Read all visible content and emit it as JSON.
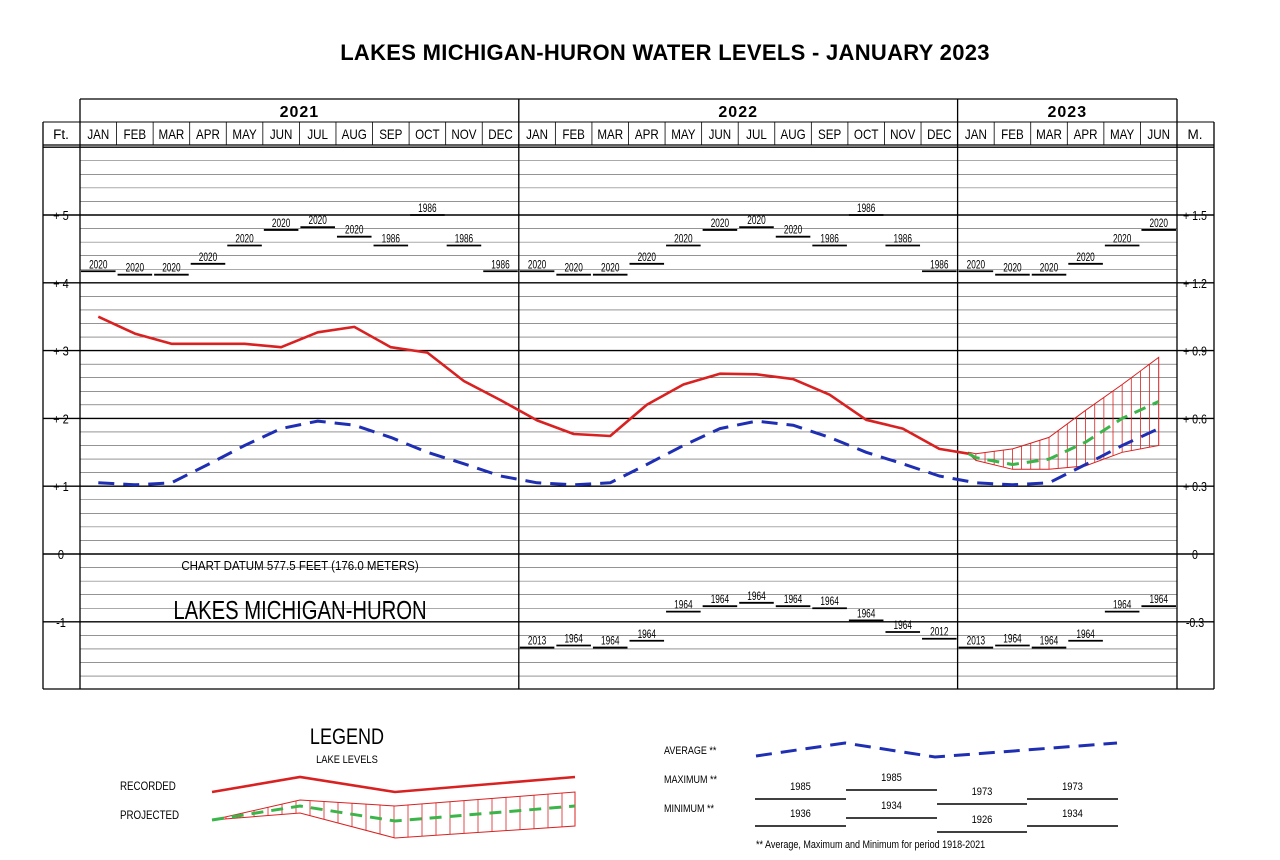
{
  "page": {
    "title": "LAKES MICHIGAN-HURON WATER LEVELS - JANUARY 2023"
  },
  "chart_data": {
    "type": "line",
    "title": "LAKES MICHIGAN-HURON WATER LEVELS - JANUARY 2023",
    "years": [
      "2021",
      "2022",
      "2023"
    ],
    "months": [
      "JAN",
      "FEB",
      "MAR",
      "APR",
      "MAY",
      "JUN",
      "JUL",
      "AUG",
      "SEP",
      "OCT",
      "NOV",
      "DEC",
      "JAN",
      "FEB",
      "MAR",
      "APR",
      "MAY",
      "JUN",
      "JUL",
      "AUG",
      "SEP",
      "OCT",
      "NOV",
      "DEC",
      "JAN",
      "FEB",
      "MAR",
      "APR",
      "MAY",
      "JUN"
    ],
    "left_axis_unit": "Ft.",
    "right_axis_unit": "M.",
    "left_ticks": [
      {
        "value": 5,
        "label": "+ 5"
      },
      {
        "value": 4,
        "label": "+ 4"
      },
      {
        "value": 3,
        "label": "+ 3"
      },
      {
        "value": 2,
        "label": "+ 2"
      },
      {
        "value": 1,
        "label": "+ 1"
      },
      {
        "value": 0,
        "label": "0"
      },
      {
        "value": -1,
        "label": "-1"
      }
    ],
    "right_ticks": [
      {
        "value": 5,
        "label": "+ 1.5"
      },
      {
        "value": 4,
        "label": "+ 1.2"
      },
      {
        "value": 3,
        "label": "+ 0.9"
      },
      {
        "value": 2,
        "label": "+ 0.6"
      },
      {
        "value": 1,
        "label": "+ 0.3"
      },
      {
        "value": 0,
        "label": "0"
      },
      {
        "value": -1,
        "label": "-0.3"
      }
    ],
    "ylim": [
      -2,
      6.2
    ],
    "datum_label": "CHART DATUM  577.5 FEET (176.0 METERS)",
    "lake_label": "LAKES MICHIGAN-HURON",
    "recorded": {
      "name": "RECORDED",
      "color": "#d92121",
      "x": [
        0,
        1,
        2,
        3,
        4,
        5,
        6,
        7,
        8,
        9,
        10,
        11,
        12,
        13,
        14,
        15,
        16,
        17,
        18,
        19,
        20,
        21,
        22,
        23,
        23.8
      ],
      "y": [
        3.5,
        3.25,
        3.1,
        3.1,
        3.1,
        3.05,
        3.27,
        3.35,
        3.05,
        2.97,
        2.55,
        2.27,
        1.97,
        1.77,
        1.74,
        2.2,
        2.5,
        2.66,
        2.65,
        2.58,
        2.35,
        1.98,
        1.85,
        1.55,
        1.48
      ]
    },
    "projected": {
      "name": "PROJECTED",
      "color": "#3ab54a",
      "x": [
        23.8,
        24,
        25,
        26,
        27,
        28,
        29
      ],
      "y": [
        1.48,
        1.42,
        1.32,
        1.4,
        1.65,
        2.0,
        2.25
      ],
      "upper": [
        1.5,
        1.48,
        1.55,
        1.72,
        2.12,
        2.5,
        2.9
      ],
      "lower": [
        1.48,
        1.38,
        1.25,
        1.25,
        1.3,
        1.5,
        1.6
      ]
    },
    "average": {
      "name": "AVERAGE **",
      "color": "#1f2fb3",
      "x": [
        0,
        1,
        2,
        3,
        4,
        5,
        6,
        7,
        8,
        9,
        10,
        11,
        12,
        13,
        14,
        15,
        16,
        17,
        18,
        19,
        20,
        21,
        22,
        23,
        24,
        25,
        26,
        27,
        28,
        29
      ],
      "y": [
        1.05,
        1.02,
        1.05,
        1.32,
        1.6,
        1.85,
        1.96,
        1.9,
        1.72,
        1.5,
        1.33,
        1.15,
        1.05,
        1.02,
        1.05,
        1.32,
        1.6,
        1.85,
        1.96,
        1.9,
        1.72,
        1.5,
        1.33,
        1.15,
        1.05,
        1.02,
        1.05,
        1.32,
        1.6,
        1.85
      ]
    },
    "maximum": {
      "name": "MAXIMUM **",
      "values": [
        4.17,
        4.12,
        4.12,
        4.28,
        4.55,
        4.78,
        4.82,
        4.68,
        4.55,
        5.0,
        4.55,
        4.17,
        4.17,
        4.12,
        4.12,
        4.28,
        4.55,
        4.78,
        4.82,
        4.68,
        4.55,
        5.0,
        4.55,
        4.17,
        4.17,
        4.12,
        4.12,
        4.28,
        4.55,
        4.78
      ],
      "years": [
        "2020",
        "2020",
        "2020",
        "2020",
        "2020",
        "2020",
        "2020",
        "2020",
        "1986",
        "1986",
        "1986",
        "1986",
        "2020",
        "2020",
        "2020",
        "2020",
        "2020",
        "2020",
        "2020",
        "2020",
        "1986",
        "1986",
        "1986",
        "1986",
        "2020",
        "2020",
        "2020",
        "2020",
        "2020",
        "2020"
      ]
    },
    "minimum": {
      "name": "MINIMUM **",
      "values": [
        null,
        null,
        null,
        null,
        null,
        null,
        null,
        null,
        null,
        null,
        null,
        null,
        -1.38,
        -1.35,
        -1.38,
        -1.28,
        -0.85,
        -0.77,
        -0.72,
        -0.77,
        -0.8,
        -0.98,
        -1.15,
        -1.25,
        -1.38,
        -1.35,
        -1.38,
        -1.28,
        -0.85,
        -0.77
      ],
      "years": [
        "",
        "",
        "",
        "",
        "",
        "",
        "",
        "",
        "",
        "",
        "",
        "",
        "2013",
        "1964",
        "1964",
        "1964",
        "1964",
        "1964",
        "1964",
        "1964",
        "1964",
        "1964",
        "1964",
        "2012",
        "2013",
        "1964",
        "1964",
        "1964",
        "1964",
        "1964"
      ]
    }
  },
  "legend": {
    "title": "LEGEND",
    "subtitle": "LAKE LEVELS",
    "recorded_label": "RECORDED",
    "projected_label": "PROJECTED",
    "average_label": "AVERAGE **",
    "maximum_label": "MAXIMUM **",
    "minimum_label": "MINIMUM **",
    "max_years": [
      "1985",
      "1985",
      "1973",
      "1973"
    ],
    "min_years": [
      "1936",
      "1934",
      "1926",
      "1934"
    ],
    "footnote": "** Average, Maximum and Minimum for period 1918-2021"
  }
}
